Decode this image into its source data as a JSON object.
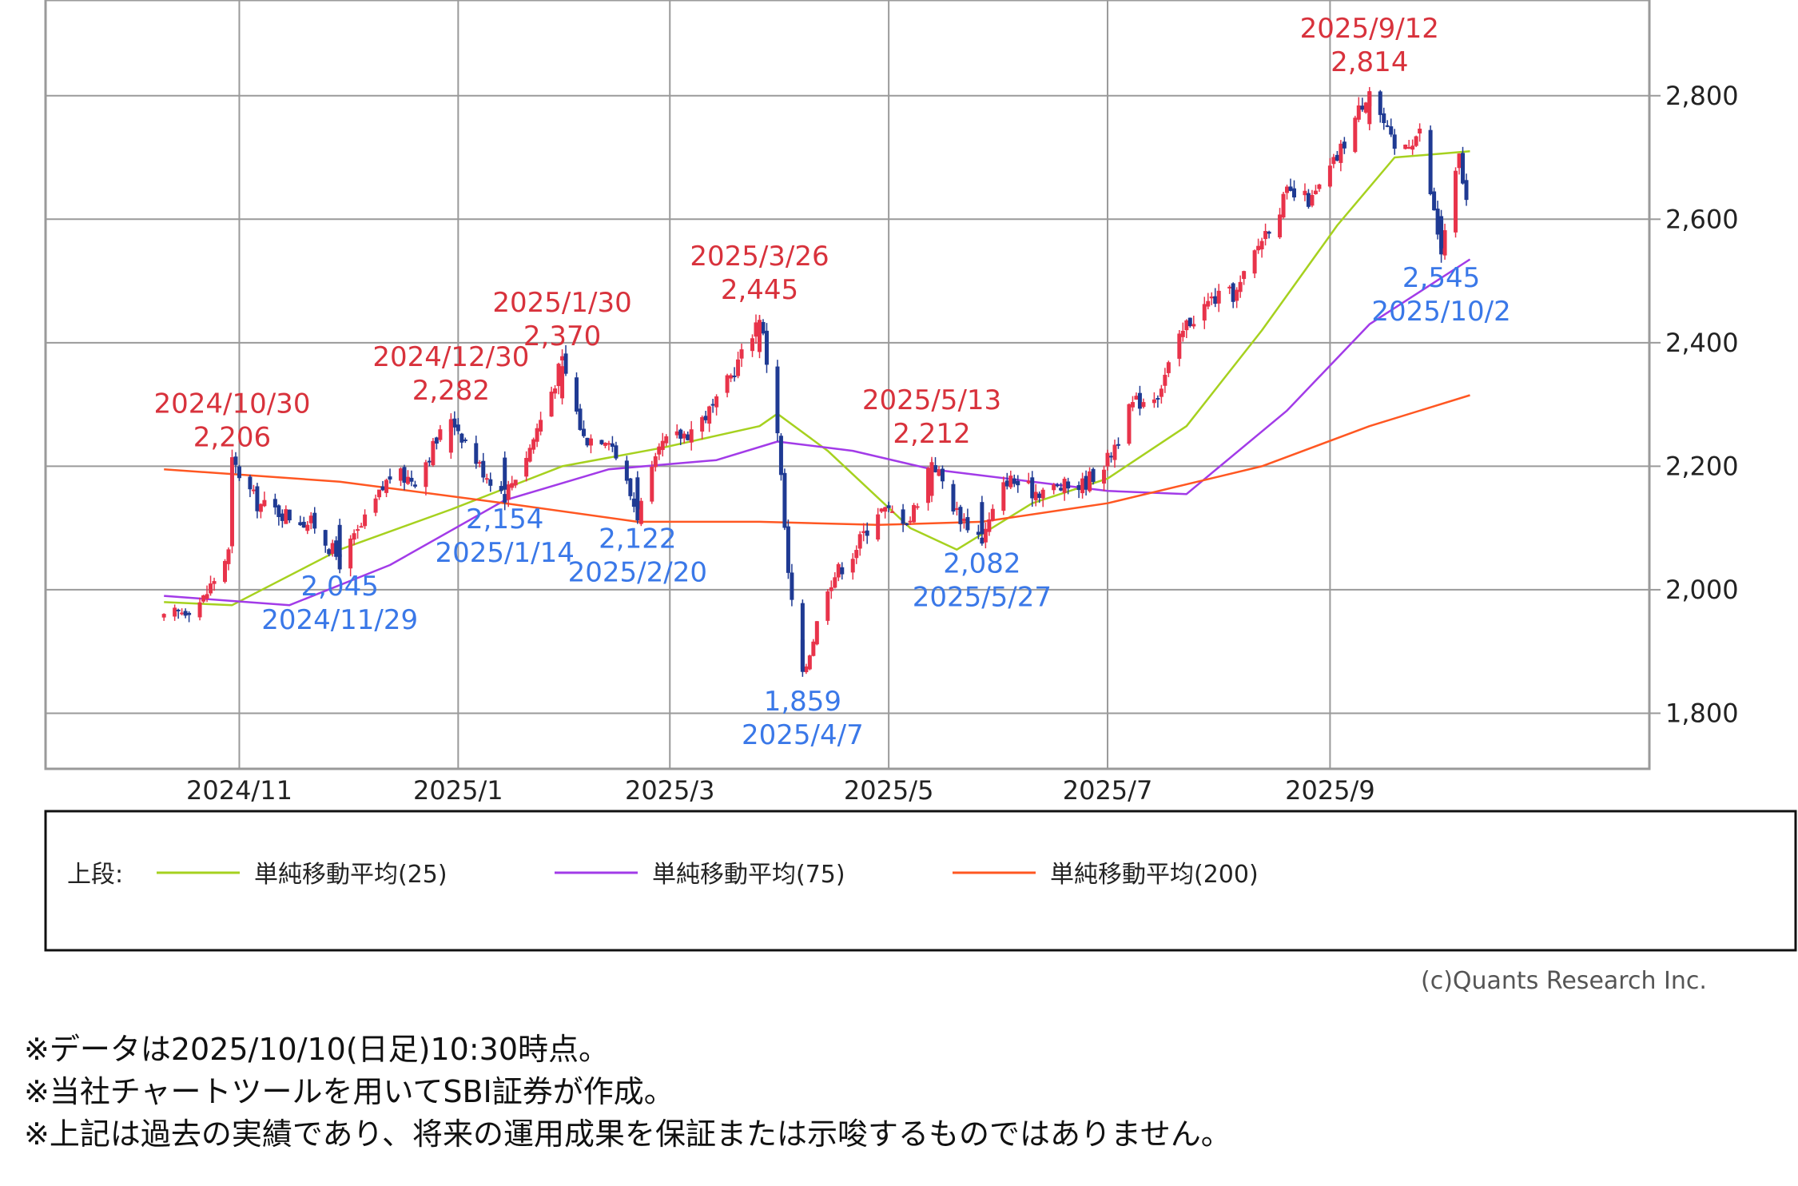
{
  "chart_data": {
    "type": "candlestick",
    "y_ticks": [
      1800,
      2000,
      2200,
      2400,
      2600,
      2800
    ],
    "y_tick_labels": [
      "1,800",
      "2,000",
      "2,200",
      "2,400",
      "2,600",
      "2,800"
    ],
    "ylim": [
      1710,
      2955
    ],
    "x_tick_labels": [
      "2024/11",
      "2025/1",
      "2025/3",
      "2025/5",
      "2025/7",
      "2025/9"
    ],
    "grid": true,
    "colors": {
      "up": "#e8334a",
      "down": "#1f3a93",
      "ma25": "#a6d11f",
      "ma75": "#a23be8",
      "ma200": "#ff5722",
      "high_label": "#d8323c",
      "low_label": "#3a78e8"
    },
    "price_path": [
      [
        "2024/10/11",
        1950
      ],
      [
        "2024/10/22",
        1985
      ],
      [
        "2024/10/29",
        2060
      ],
      [
        "2024/10/30",
        2206
      ],
      [
        "2024/11/6",
        2140
      ],
      [
        "2024/11/15",
        2120
      ],
      [
        "2024/11/22",
        2105
      ],
      [
        "2024/11/29",
        2045
      ],
      [
        "2024/12/6",
        2110
      ],
      [
        "2024/12/13",
        2185
      ],
      [
        "2024/12/20",
        2180
      ],
      [
        "2024/12/30",
        2282
      ],
      [
        "2025/1/7",
        2200
      ],
      [
        "2025/1/14",
        2154
      ],
      [
        "2025/1/21",
        2230
      ],
      [
        "2025/1/30",
        2370
      ],
      [
        "2025/2/5",
        2245
      ],
      [
        "2025/2/12",
        2250
      ],
      [
        "2025/2/20",
        2122
      ],
      [
        "2025/2/27",
        2235
      ],
      [
        "2025/3/6",
        2255
      ],
      [
        "2025/3/14",
        2300
      ],
      [
        "2025/3/21",
        2380
      ],
      [
        "2025/3/26",
        2445
      ],
      [
        "2025/3/31",
        2260
      ],
      [
        "2025/4/3",
        2020
      ],
      [
        "2025/4/7",
        1859
      ],
      [
        "2025/4/14",
        2010
      ],
      [
        "2025/4/21",
        2060
      ],
      [
        "2025/4/28",
        2130
      ],
      [
        "2025/5/7",
        2115
      ],
      [
        "2025/5/13",
        2212
      ],
      [
        "2025/5/20",
        2125
      ],
      [
        "2025/5/27",
        2082
      ],
      [
        "2025/6/3",
        2180
      ],
      [
        "2025/6/10",
        2160
      ],
      [
        "2025/6/17",
        2165
      ],
      [
        "2025/6/24",
        2170
      ],
      [
        "2025/7/1",
        2210
      ],
      [
        "2025/7/8",
        2300
      ],
      [
        "2025/7/15",
        2320
      ],
      [
        "2025/7/23",
        2430
      ],
      [
        "2025/7/30",
        2470
      ],
      [
        "2025/8/6",
        2480
      ],
      [
        "2025/8/13",
        2570
      ],
      [
        "2025/8/20",
        2640
      ],
      [
        "2025/8/27",
        2630
      ],
      [
        "2025/9/3",
        2700
      ],
      [
        "2025/9/12",
        2814
      ],
      [
        "2025/9/19",
        2710
      ],
      [
        "2025/9/26",
        2740
      ],
      [
        "2025/10/2",
        2545
      ],
      [
        "2025/10/7",
        2700
      ],
      [
        "2025/10/10",
        2590
      ]
    ],
    "series": [
      {
        "name": "単純移動平均(25)",
        "points": [
          [
            "2024/10/11",
            1980
          ],
          [
            "2024/10/30",
            1975
          ],
          [
            "2024/11/29",
            2065
          ],
          [
            "2024/12/30",
            2130
          ],
          [
            "2025/1/30",
            2200
          ],
          [
            "2025/2/27",
            2230
          ],
          [
            "2025/3/26",
            2265
          ],
          [
            "2025/3/31",
            2285
          ],
          [
            "2025/4/14",
            2225
          ],
          [
            "2025/5/7",
            2100
          ],
          [
            "2025/5/20",
            2065
          ],
          [
            "2025/6/10",
            2140
          ],
          [
            "2025/7/1",
            2180
          ],
          [
            "2025/7/23",
            2265
          ],
          [
            "2025/8/13",
            2420
          ],
          [
            "2025/9/3",
            2590
          ],
          [
            "2025/9/19",
            2700
          ],
          [
            "2025/10/10",
            2710
          ]
        ]
      },
      {
        "name": "単純移動平均(75)",
        "points": [
          [
            "2024/10/11",
            1990
          ],
          [
            "2024/11/15",
            1975
          ],
          [
            "2024/12/13",
            2040
          ],
          [
            "2025/1/14",
            2145
          ],
          [
            "2025/2/12",
            2195
          ],
          [
            "2025/3/14",
            2210
          ],
          [
            "2025/3/31",
            2240
          ],
          [
            "2025/4/21",
            2225
          ],
          [
            "2025/5/13",
            2195
          ],
          [
            "2025/6/10",
            2175
          ],
          [
            "2025/7/1",
            2160
          ],
          [
            "2025/7/23",
            2155
          ],
          [
            "2025/8/20",
            2290
          ],
          [
            "2025/9/12",
            2430
          ],
          [
            "2025/10/10",
            2535
          ]
        ]
      },
      {
        "name": "単純移動平均(200)",
        "points": [
          [
            "2024/10/11",
            2195
          ],
          [
            "2024/11/29",
            2175
          ],
          [
            "2025/1/14",
            2140
          ],
          [
            "2025/2/20",
            2110
          ],
          [
            "2025/3/26",
            2110
          ],
          [
            "2025/4/28",
            2105
          ],
          [
            "2025/5/27",
            2110
          ],
          [
            "2025/7/1",
            2140
          ],
          [
            "2025/8/13",
            2200
          ],
          [
            "2025/9/12",
            2265
          ],
          [
            "2025/10/10",
            2315
          ]
        ]
      }
    ],
    "annotations_high": [
      {
        "date": "2024/10/30",
        "value": "2,206"
      },
      {
        "date": "2024/12/30",
        "value": "2,282"
      },
      {
        "date": "2025/1/30",
        "value": "2,370"
      },
      {
        "date": "2025/3/26",
        "value": "2,445"
      },
      {
        "date": "2025/5/13",
        "value": "2,212"
      },
      {
        "date": "2025/9/12",
        "value": "2,814"
      }
    ],
    "annotations_low": [
      {
        "date": "2024/11/29",
        "value": "2,045"
      },
      {
        "date": "2025/1/14",
        "value": "2,154"
      },
      {
        "date": "2025/2/20",
        "value": "2,122"
      },
      {
        "date": "2025/4/7",
        "value": "1,859"
      },
      {
        "date": "2025/5/27",
        "value": "2,082"
      },
      {
        "date": "2025/10/2",
        "value": "2,545"
      }
    ],
    "legend": {
      "prefix": "上段:",
      "items": [
        "単純移動平均(25)",
        "単純移動平均(75)",
        "単純移動平均(200)"
      ]
    }
  },
  "copyright": "(c)Quants Research Inc.",
  "footnotes": [
    "※データは2025/10/10(日足)10:30時点。",
    "※当社チャートツールを用いてSBI証券が作成。",
    "※上記は過去の実績であり、将来の運用成果を保証または示唆するものではありません。"
  ]
}
